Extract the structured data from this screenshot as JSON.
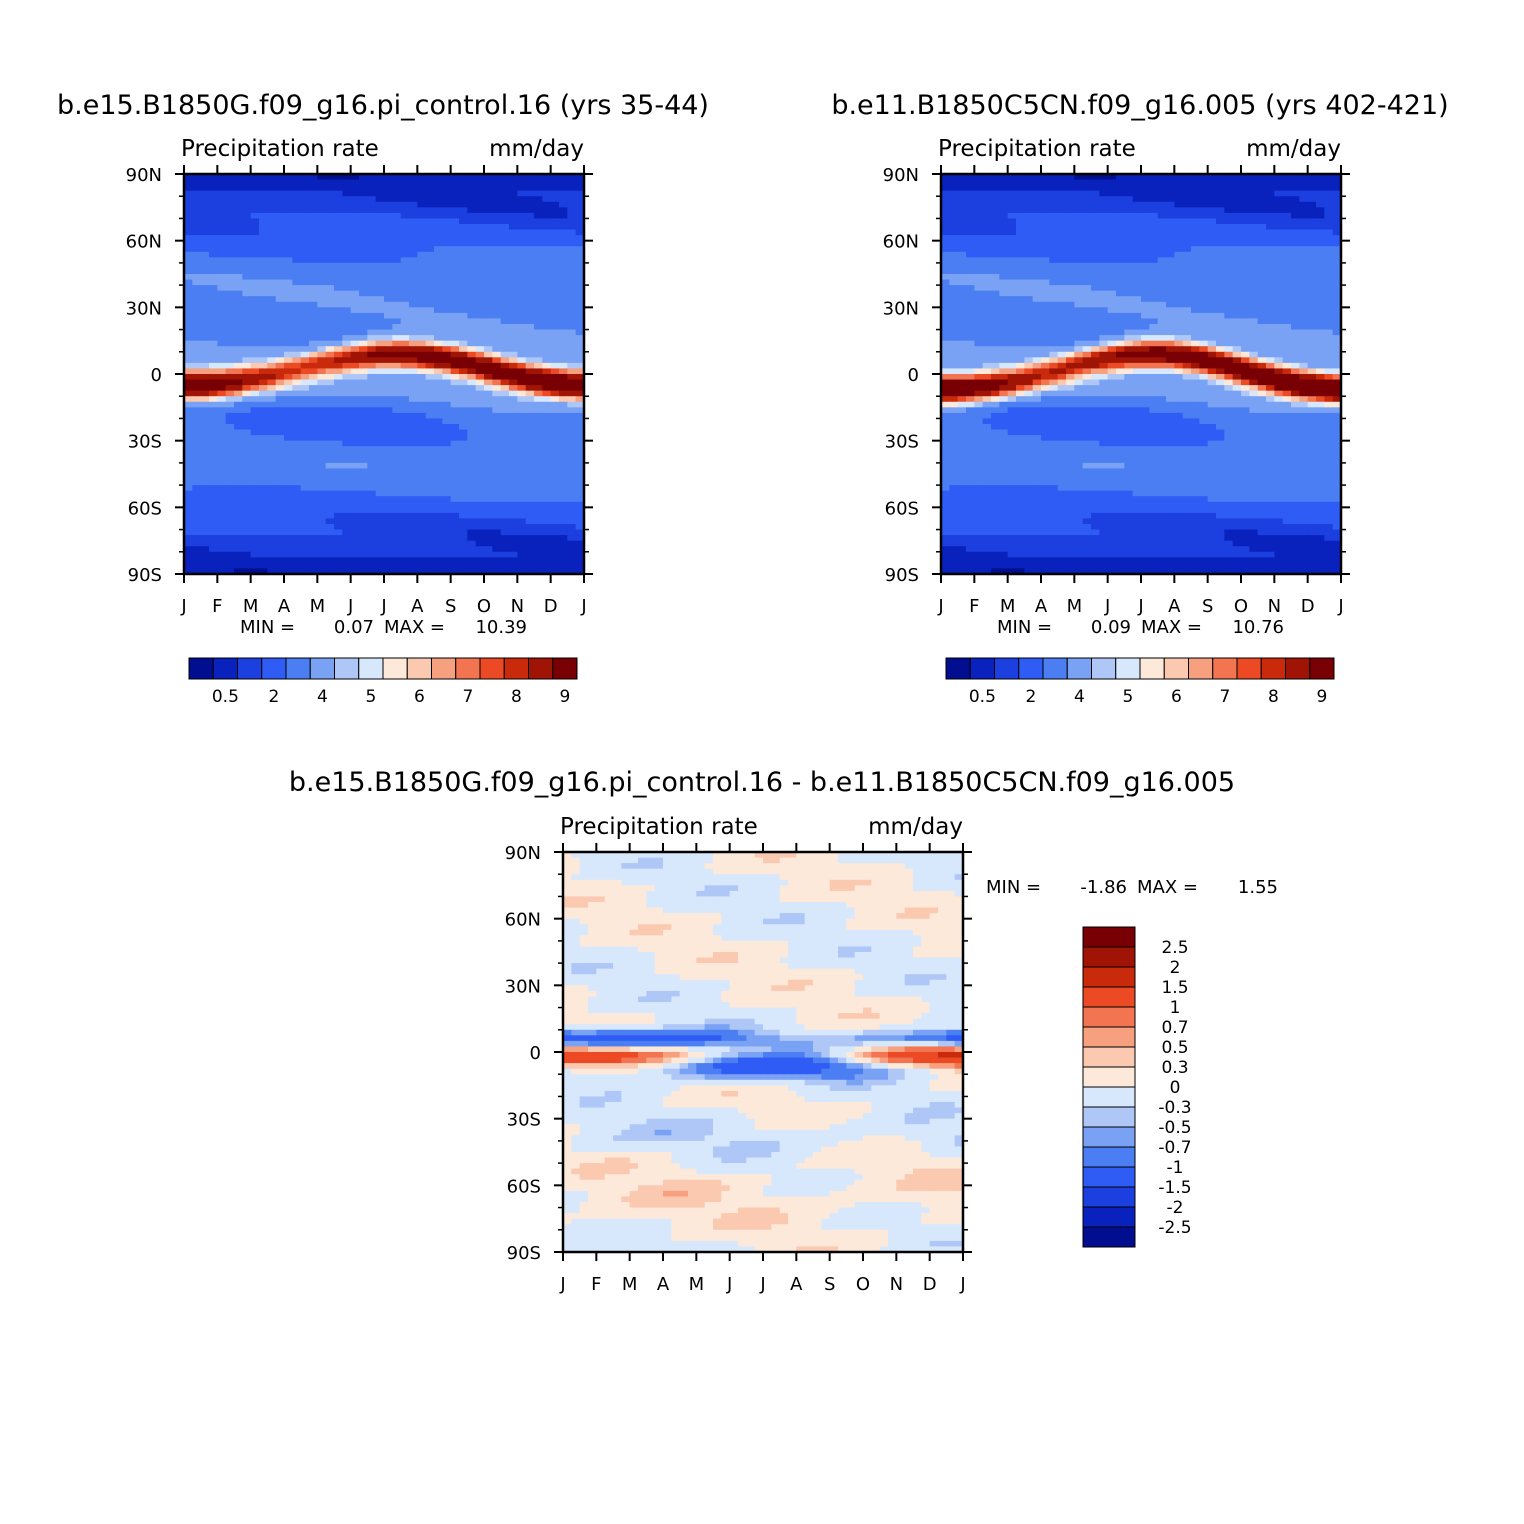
{
  "colors": {
    "precip_levels": [
      "#000e8f",
      "#0a22bd",
      "#1c3fe0",
      "#2e5cf5",
      "#4a7ef2",
      "#7aa2f4",
      "#aec7f7",
      "#d8e8fc",
      "#fde9da",
      "#fbc8b0",
      "#f7a07f",
      "#f27450",
      "#eb4a24",
      "#c92a0c",
      "#a01406",
      "#780004"
    ],
    "diff_levels": [
      "#000e8f",
      "#0a22bd",
      "#1c3fe0",
      "#2e5cf5",
      "#4a7ef2",
      "#7aa2f4",
      "#aec7f7",
      "#d8e8fc",
      "#fde9da",
      "#fbc8b0",
      "#f7a07f",
      "#f27450",
      "#eb4a24",
      "#c92a0c",
      "#a01406",
      "#780004"
    ]
  },
  "chart_data": [
    {
      "type": "heatmap",
      "id": "panel-1",
      "title": "b.e15.B1850G.f09_g16.pi_control.16 (yrs 35-44)",
      "left_label": "Precipitation rate",
      "right_label": "mm/day",
      "x_ticks": [
        "J",
        "F",
        "M",
        "A",
        "M",
        "J",
        "J",
        "A",
        "S",
        "O",
        "N",
        "D",
        "J"
      ],
      "y_ticks": [
        "90N",
        "60N",
        "30N",
        "0",
        "30S",
        "60S",
        "90S"
      ],
      "y_range": [
        -90,
        90
      ],
      "min_label": "MIN =",
      "min_value": "0.07",
      "max_label": "MAX =",
      "max_value": "10.39",
      "itcz": {
        "jan_lat": -5,
        "sep_lat": 9,
        "peak_month": 7.5,
        "peak_value": 10.39
      },
      "colorbar": {
        "levels": [
          0.2,
          0.5,
          1,
          2,
          3,
          4,
          4.5,
          5,
          5.5,
          6,
          6.5,
          7,
          7.5,
          8,
          9
        ],
        "tick_labels": [
          "0.5",
          "2",
          "4",
          "5",
          "6",
          "7",
          "8",
          "9"
        ]
      }
    },
    {
      "type": "heatmap",
      "id": "panel-2",
      "title": "b.e11.B1850C5CN.f09_g16.005 (yrs 402-421)",
      "left_label": "Precipitation rate",
      "right_label": "mm/day",
      "x_ticks": [
        "J",
        "F",
        "M",
        "A",
        "M",
        "J",
        "J",
        "A",
        "S",
        "O",
        "N",
        "D",
        "J"
      ],
      "y_ticks": [
        "90N",
        "60N",
        "30N",
        "0",
        "30S",
        "60S",
        "90S"
      ],
      "y_range": [
        -90,
        90
      ],
      "min_label": "MIN =",
      "min_value": "0.09",
      "max_label": "MAX =",
      "max_value": "10.76",
      "itcz": {
        "jan_lat": -7,
        "sep_lat": 9,
        "peak_month": 7.5,
        "peak_value": 10.76
      },
      "colorbar": {
        "levels": [
          0.2,
          0.5,
          1,
          2,
          3,
          4,
          4.5,
          5,
          5.5,
          6,
          6.5,
          7,
          7.5,
          8,
          9
        ],
        "tick_labels": [
          "0.5",
          "2",
          "4",
          "5",
          "6",
          "7",
          "8",
          "9"
        ]
      }
    },
    {
      "type": "heatmap",
      "id": "panel-diff",
      "title": "b.e15.B1850G.f09_g16.pi_control.16 - b.e11.B1850C5CN.f09_g16.005",
      "left_label": "Precipitation rate",
      "right_label": "mm/day",
      "x_ticks": [
        "J",
        "F",
        "M",
        "A",
        "M",
        "J",
        "J",
        "A",
        "S",
        "O",
        "N",
        "D",
        "J"
      ],
      "y_ticks": [
        "90N",
        "60N",
        "30N",
        "0",
        "30S",
        "60S",
        "90S"
      ],
      "y_range": [
        -90,
        90
      ],
      "min_label": "MIN =",
      "min_value": "-1.86",
      "max_label": "MAX =",
      "max_value": "1.55",
      "colorbar": {
        "levels": [
          -2.5,
          -2,
          -1.5,
          -1,
          -0.7,
          -0.5,
          -0.3,
          0,
          0.3,
          0.5,
          0.7,
          1,
          1.5,
          2,
          2.5
        ],
        "tick_labels": [
          "2.5",
          "2",
          "1.5",
          "1",
          "0.7",
          "0.5",
          "0.3",
          "0",
          "-0.3",
          "-0.5",
          "-0.7",
          "-1",
          "-1.5",
          "-2",
          "-2.5"
        ]
      }
    }
  ]
}
